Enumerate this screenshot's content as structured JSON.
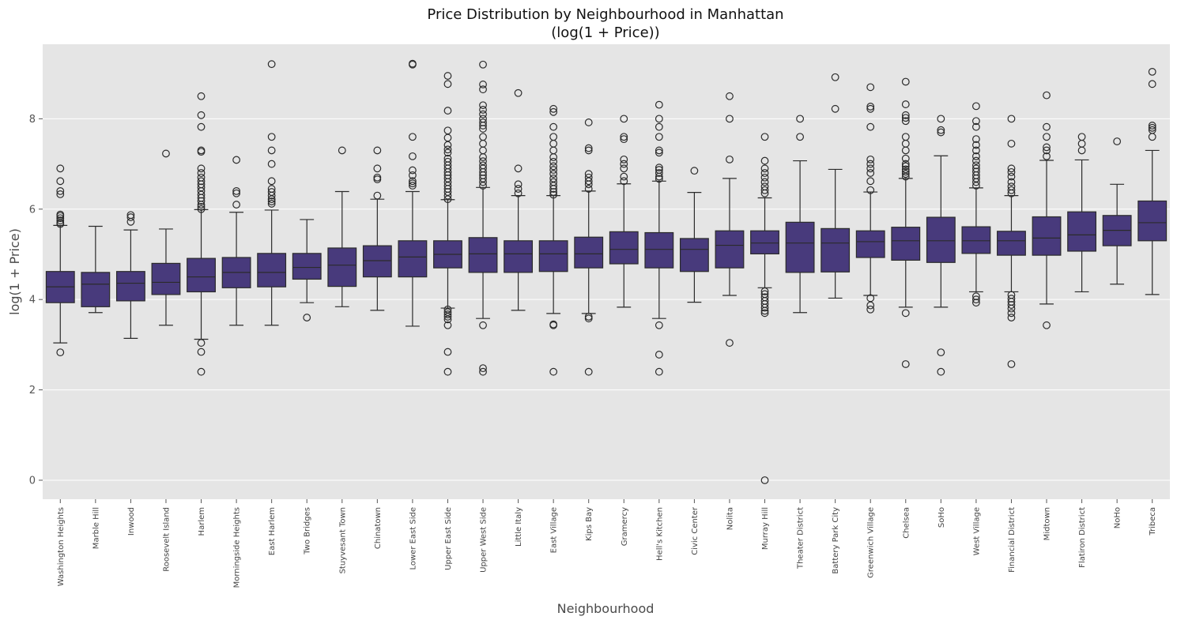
{
  "chart_data": {
    "type": "box",
    "title_line1": "Price Distribution by Neighbourhood in Manhattan",
    "title_line2": "(log(1 + Price))",
    "xlabel": "Neighbourhood",
    "ylabel": "log(1 + Price)",
    "ylim": [
      -0.42,
      9.65
    ],
    "yticks": [
      0,
      2,
      4,
      6,
      8
    ],
    "grid": true,
    "colors": {
      "box": "#483a7c",
      "line": "#2b2b2b",
      "background": "#e5e5e5",
      "grid": "#ffffff"
    },
    "boxes": [
      {
        "name": "Washington Heights",
        "whisker_low": 3.04,
        "q1": 3.93,
        "median": 4.28,
        "q3": 4.62,
        "whisker_high": 5.64,
        "outliers": [
          2.83,
          5.67,
          5.7,
          5.75,
          5.8,
          5.85,
          5.88,
          6.33,
          6.4,
          6.62,
          6.9
        ]
      },
      {
        "name": "Marble Hill",
        "whisker_low": 3.71,
        "q1": 3.84,
        "median": 4.34,
        "q3": 4.6,
        "whisker_high": 5.62,
        "outliers": []
      },
      {
        "name": "Inwood",
        "whisker_low": 3.14,
        "q1": 3.97,
        "median": 4.36,
        "q3": 4.62,
        "whisker_high": 5.54,
        "outliers": [
          5.72,
          5.82,
          5.87
        ]
      },
      {
        "name": "Roosevelt Island",
        "whisker_low": 3.43,
        "q1": 4.11,
        "median": 4.38,
        "q3": 4.8,
        "whisker_high": 5.56,
        "outliers": [
          7.23
        ]
      },
      {
        "name": "Harlem",
        "whisker_low": 3.12,
        "q1": 4.17,
        "median": 4.5,
        "q3": 4.91,
        "whisker_high": 5.99,
        "outliers": [
          2.4,
          2.84,
          3.04,
          6.0,
          6.05,
          6.1,
          6.18,
          6.25,
          6.32,
          6.4,
          6.48,
          6.55,
          6.62,
          6.7,
          6.8,
          6.9,
          7.27,
          7.3,
          7.82,
          8.08,
          8.5
        ]
      },
      {
        "name": "Morningside Heights",
        "whisker_low": 3.43,
        "q1": 4.26,
        "median": 4.6,
        "q3": 4.93,
        "whisker_high": 5.93,
        "outliers": [
          6.1,
          6.35,
          6.4,
          7.09
        ]
      },
      {
        "name": "East Harlem",
        "whisker_low": 3.43,
        "q1": 4.28,
        "median": 4.6,
        "q3": 5.02,
        "whisker_high": 5.98,
        "outliers": [
          6.12,
          6.17,
          6.22,
          6.3,
          6.38,
          6.45,
          6.62,
          7.0,
          7.3,
          7.6,
          9.21
        ]
      },
      {
        "name": "Two Bridges",
        "whisker_low": 3.93,
        "q1": 4.45,
        "median": 4.71,
        "q3": 5.02,
        "whisker_high": 5.77,
        "outliers": [
          3.6
        ]
      },
      {
        "name": "Stuyvesant Town",
        "whisker_low": 3.84,
        "q1": 4.29,
        "median": 4.76,
        "q3": 5.14,
        "whisker_high": 6.39,
        "outliers": [
          7.3
        ]
      },
      {
        "name": "Chinatown",
        "whisker_low": 3.76,
        "q1": 4.5,
        "median": 4.86,
        "q3": 5.19,
        "whisker_high": 6.22,
        "outliers": [
          6.3,
          6.66,
          6.7,
          6.9,
          7.3
        ]
      },
      {
        "name": "Lower East Side",
        "whisker_low": 3.41,
        "q1": 4.5,
        "median": 4.94,
        "q3": 5.3,
        "whisker_high": 6.39,
        "outliers": [
          6.52,
          6.57,
          6.62,
          6.75,
          6.86,
          7.17,
          7.6,
          9.2,
          9.22
        ]
      },
      {
        "name": "Upper East Side",
        "whisker_low": 3.81,
        "q1": 4.7,
        "median": 5.0,
        "q3": 5.3,
        "whisker_high": 6.21,
        "outliers": [
          2.4,
          2.84,
          3.43,
          3.56,
          3.62,
          3.67,
          3.72,
          3.78,
          6.22,
          6.3,
          6.38,
          6.45,
          6.52,
          6.6,
          6.68,
          6.75,
          6.82,
          6.9,
          6.97,
          7.05,
          7.12,
          7.25,
          7.32,
          7.42,
          7.58,
          7.74,
          8.18,
          8.77,
          8.95
        ]
      },
      {
        "name": "Upper West Side",
        "whisker_low": 3.58,
        "q1": 4.6,
        "median": 5.01,
        "q3": 5.37,
        "whisker_high": 6.48,
        "outliers": [
          2.4,
          2.48,
          3.43,
          6.52,
          6.6,
          6.68,
          6.75,
          6.82,
          6.9,
          6.97,
          7.06,
          7.15,
          7.3,
          7.45,
          7.6,
          7.78,
          7.85,
          7.92,
          8.0,
          8.1,
          8.2,
          8.3,
          8.65,
          8.76,
          9.2
        ]
      },
      {
        "name": "Little Italy",
        "whisker_low": 3.76,
        "q1": 4.6,
        "median": 5.01,
        "q3": 5.3,
        "whisker_high": 6.3,
        "outliers": [
          6.35,
          6.45,
          6.55,
          6.9,
          8.57
        ]
      },
      {
        "name": "East Village",
        "whisker_low": 3.69,
        "q1": 4.62,
        "median": 5.01,
        "q3": 5.3,
        "whisker_high": 6.3,
        "outliers": [
          2.4,
          3.43,
          3.45,
          6.32,
          6.38,
          6.45,
          6.52,
          6.6,
          6.68,
          6.78,
          6.87,
          6.95,
          7.05,
          7.15,
          7.3,
          7.45,
          7.6,
          7.82,
          8.15,
          8.22
        ]
      },
      {
        "name": "Kips Bay",
        "whisker_low": 3.69,
        "q1": 4.7,
        "median": 5.01,
        "q3": 5.38,
        "whisker_high": 6.4,
        "outliers": [
          2.4,
          3.58,
          3.62,
          6.45,
          6.55,
          6.62,
          6.7,
          6.78,
          7.3,
          7.35,
          7.92
        ]
      },
      {
        "name": "Gramercy",
        "whisker_low": 3.83,
        "q1": 4.79,
        "median": 5.11,
        "q3": 5.5,
        "whisker_high": 6.56,
        "outliers": [
          6.62,
          6.72,
          6.9,
          7.0,
          7.1,
          7.55,
          7.6,
          8.0
        ]
      },
      {
        "name": "Hell's Kitchen",
        "whisker_low": 3.58,
        "q1": 4.7,
        "median": 5.11,
        "q3": 5.48,
        "whisker_high": 6.62,
        "outliers": [
          2.4,
          2.78,
          3.43,
          6.67,
          6.72,
          6.8,
          6.87,
          6.92,
          7.25,
          7.3,
          7.6,
          7.82,
          8.0,
          8.31
        ]
      },
      {
        "name": "Civic Center",
        "whisker_low": 3.94,
        "q1": 4.62,
        "median": 5.11,
        "q3": 5.35,
        "whisker_high": 6.37,
        "outliers": [
          6.85
        ]
      },
      {
        "name": "Nolita",
        "whisker_low": 4.09,
        "q1": 4.7,
        "median": 5.2,
        "q3": 5.52,
        "whisker_high": 6.68,
        "outliers": [
          3.04,
          7.1,
          8.0,
          8.5
        ]
      },
      {
        "name": "Murray Hill",
        "whisker_low": 4.26,
        "q1": 5.01,
        "median": 5.25,
        "q3": 5.52,
        "whisker_high": 6.25,
        "outliers": [
          0.0,
          3.7,
          3.75,
          3.82,
          3.9,
          3.97,
          4.05,
          4.12,
          4.18,
          6.35,
          6.42,
          6.5,
          6.6,
          6.7,
          6.8,
          6.9,
          7.07,
          7.6
        ]
      },
      {
        "name": "Theater District",
        "whisker_low": 3.71,
        "q1": 4.6,
        "median": 5.25,
        "q3": 5.71,
        "whisker_high": 7.07,
        "outliers": [
          7.6,
          8.0
        ]
      },
      {
        "name": "Battery Park City",
        "whisker_low": 4.03,
        "q1": 4.61,
        "median": 5.25,
        "q3": 5.57,
        "whisker_high": 6.88,
        "outliers": [
          8.22,
          8.92
        ]
      },
      {
        "name": "Greenwich Village",
        "whisker_low": 4.09,
        "q1": 4.93,
        "median": 5.28,
        "q3": 5.52,
        "whisker_high": 6.38,
        "outliers": [
          3.78,
          3.87,
          4.03,
          6.42,
          6.62,
          6.8,
          6.9,
          7.0,
          7.1,
          7.82,
          8.22,
          8.27,
          8.7
        ]
      },
      {
        "name": "Chelsea",
        "whisker_low": 3.83,
        "q1": 4.87,
        "median": 5.3,
        "q3": 5.6,
        "whisker_high": 6.68,
        "outliers": [
          2.57,
          3.7,
          6.72,
          6.78,
          6.83,
          6.88,
          6.95,
          7.0,
          7.12,
          7.3,
          7.45,
          7.6,
          7.95,
          8.02,
          8.08,
          8.32,
          8.82
        ]
      },
      {
        "name": "SoHo",
        "whisker_low": 3.83,
        "q1": 4.82,
        "median": 5.3,
        "q3": 5.82,
        "whisker_high": 7.18,
        "outliers": [
          2.4,
          2.83,
          7.7,
          7.75,
          8.0
        ]
      },
      {
        "name": "West Village",
        "whisker_low": 4.17,
        "q1": 5.02,
        "median": 5.3,
        "q3": 5.61,
        "whisker_high": 6.47,
        "outliers": [
          3.93,
          4.0,
          4.07,
          6.52,
          6.6,
          6.68,
          6.75,
          6.83,
          6.9,
          6.97,
          7.07,
          7.17,
          7.3,
          7.42,
          7.55,
          7.82,
          7.95,
          8.28
        ]
      },
      {
        "name": "Financial District",
        "whisker_low": 4.17,
        "q1": 4.98,
        "median": 5.3,
        "q3": 5.51,
        "whisker_high": 6.3,
        "outliers": [
          2.57,
          3.6,
          3.7,
          3.8,
          3.88,
          3.95,
          4.02,
          4.1,
          6.35,
          6.42,
          6.5,
          6.6,
          6.72,
          6.82,
          6.9,
          7.45,
          8.0
        ]
      },
      {
        "name": "Midtown",
        "whisker_low": 3.9,
        "q1": 4.98,
        "median": 5.36,
        "q3": 5.83,
        "whisker_high": 7.08,
        "outliers": [
          3.43,
          7.17,
          7.3,
          7.37,
          7.6,
          7.82,
          8.52
        ]
      },
      {
        "name": "Flatiron District",
        "whisker_low": 4.17,
        "q1": 5.07,
        "median": 5.43,
        "q3": 5.94,
        "whisker_high": 7.09,
        "outliers": [
          7.3,
          7.45,
          7.6
        ]
      },
      {
        "name": "NoHo",
        "whisker_low": 4.34,
        "q1": 5.19,
        "median": 5.53,
        "q3": 5.86,
        "whisker_high": 6.55,
        "outliers": [
          7.5
        ]
      },
      {
        "name": "Tribeca",
        "whisker_low": 4.11,
        "q1": 5.3,
        "median": 5.7,
        "q3": 6.18,
        "whisker_high": 7.3,
        "outliers": [
          7.6,
          7.75,
          7.8,
          7.85,
          8.77,
          9.04
        ]
      }
    ]
  }
}
